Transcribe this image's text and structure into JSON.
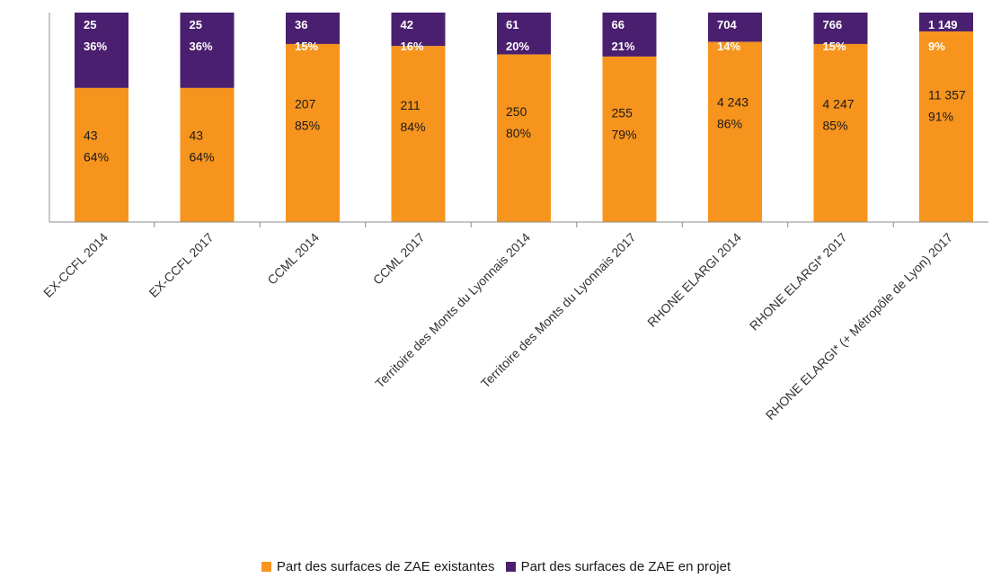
{
  "chart_data": {
    "type": "bar",
    "stacked": true,
    "normalized": true,
    "categories": [
      "EX-CCFL 2014",
      "EX-CCFL 2017",
      "CCML 2014",
      "CCML 2017",
      "Territoire des Monts du Lyonnais 2014",
      "Territoire des Monts du Lyonnais 2017",
      "RHONE ELARGI 2014",
      "RHONE ELARGI* 2017",
      "RHONE ELARGI* (+ Métropôle de Lyon) 2017"
    ],
    "series": [
      {
        "name": "Part des surfaces de ZAE existantes",
        "color": "#f7941d",
        "values": [
          43,
          43,
          207,
          211,
          250,
          255,
          4243,
          4247,
          11357
        ],
        "value_labels": [
          "43",
          "43",
          "207",
          "211",
          "250",
          "255",
          "4 243",
          "4 247",
          "11 357"
        ],
        "percent_labels": [
          "64%",
          "64%",
          "85%",
          "84%",
          "80%",
          "79%",
          "86%",
          "85%",
          "91%"
        ],
        "shares": [
          0.64,
          0.64,
          0.85,
          0.84,
          0.8,
          0.79,
          0.86,
          0.85,
          0.91
        ]
      },
      {
        "name": "Part des surfaces de ZAE en projet",
        "color": "#4b1f6f",
        "values": [
          25,
          25,
          36,
          42,
          61,
          66,
          704,
          766,
          1149
        ],
        "value_labels": [
          "25",
          "25",
          "36",
          "42",
          "61",
          "66",
          "704",
          "766",
          "1 149"
        ],
        "percent_labels": [
          "36%",
          "36%",
          "15%",
          "16%",
          "20%",
          "21%",
          "14%",
          "15%",
          "9%"
        ],
        "shares": [
          0.36,
          0.36,
          0.15,
          0.16,
          0.2,
          0.21,
          0.14,
          0.15,
          0.09
        ]
      }
    ],
    "title": "",
    "xlabel": "",
    "ylabel": "",
    "legend_position": "bottom",
    "grid": false
  }
}
